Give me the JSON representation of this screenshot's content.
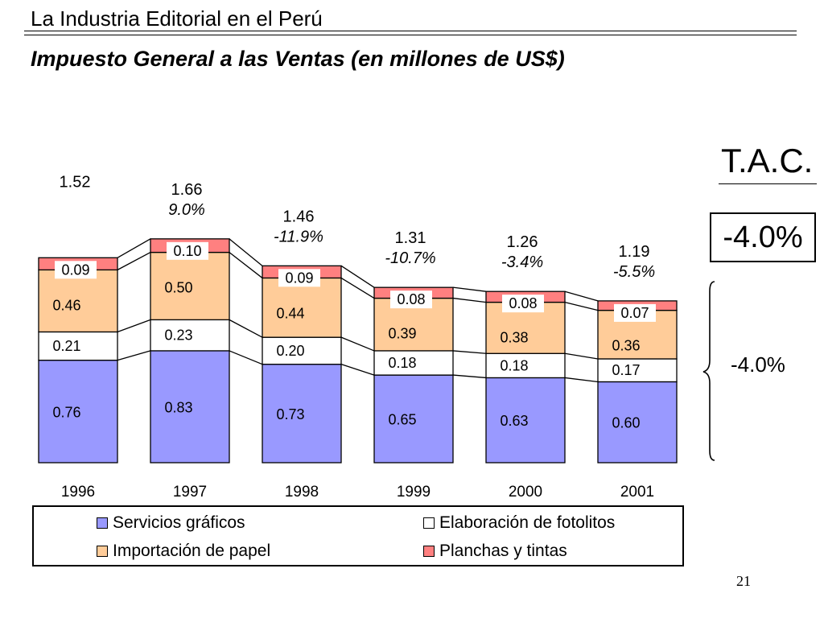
{
  "header": {
    "title": "La Industria Editorial en el Perú",
    "subtitle": "Impuesto General a las Ventas (en millones de US$)"
  },
  "chart_data": {
    "type": "bar",
    "stacked": true,
    "categories": [
      "1996",
      "1997",
      "1998",
      "1999",
      "2000",
      "2001"
    ],
    "series": [
      {
        "name": "Servicios gráficos",
        "color": "#9999ff",
        "values": [
          0.76,
          0.83,
          0.73,
          0.65,
          0.63,
          0.6
        ],
        "labels": [
          "0.76",
          "0.83",
          "0.73",
          "0.65",
          "0.63",
          "0.60"
        ]
      },
      {
        "name": "Elaboración de fotolitos",
        "color": "#ffffff",
        "values": [
          0.21,
          0.23,
          0.2,
          0.18,
          0.18,
          0.17
        ],
        "labels": [
          "0.21",
          "0.23",
          "0.20",
          "0.18",
          "0.18",
          "0.17"
        ]
      },
      {
        "name": "Importación de papel",
        "color": "#ffcc99",
        "values": [
          0.46,
          0.5,
          0.44,
          0.39,
          0.38,
          0.36
        ],
        "labels": [
          "0.46",
          "0.50",
          "0.44",
          "0.39",
          "0.38",
          "0.36"
        ]
      },
      {
        "name": "Planchas y tintas",
        "color": "#ff8080",
        "values": [
          0.09,
          0.1,
          0.09,
          0.08,
          0.08,
          0.07
        ],
        "labels": [
          "0.09",
          "0.10",
          "0.09",
          "0.08",
          "0.08",
          "0.07"
        ]
      }
    ],
    "totals": [
      "1.52",
      "1.66",
      "1.46",
      "1.31",
      "1.26",
      "1.19"
    ],
    "growth_rates": [
      "",
      "9.0%",
      "-11.9%",
      "-10.7%",
      "-3.4%",
      "-5.5%"
    ],
    "ylim": [
      0,
      1.85
    ],
    "grid": false,
    "legend_position": "bottom"
  },
  "tac": {
    "label": "T.A.C.",
    "total_value": "-4.0%",
    "brace_value": "-4.0%"
  },
  "page_number": "21"
}
